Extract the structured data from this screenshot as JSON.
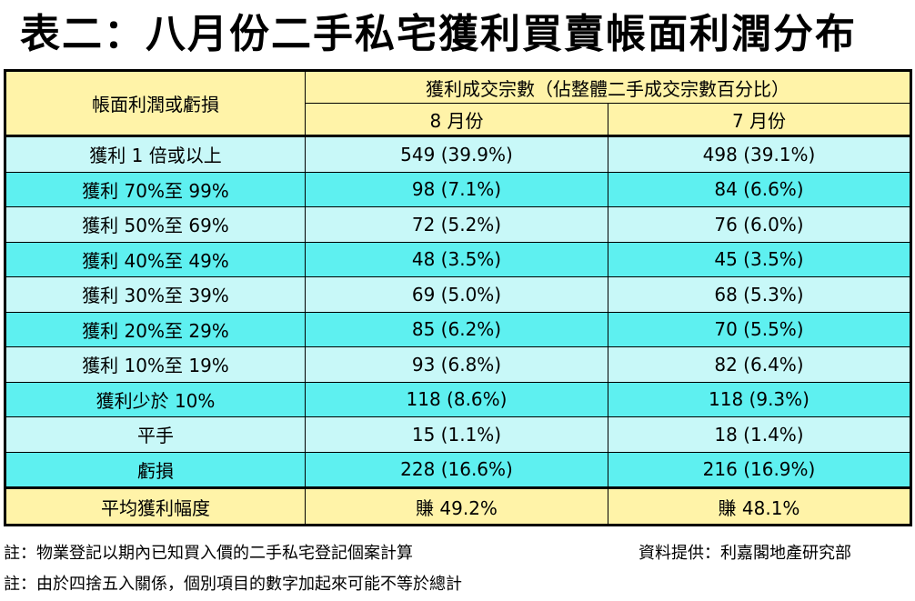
{
  "title": "表二：八月份二手私宅獲利買賣帳面利潤分布",
  "table": {
    "row_header": "帳面利潤或虧損",
    "group_header": "獲利成交宗數（佔整體二手成交宗數百分比）",
    "col_aug": "8 月份",
    "col_jul": "7 月份",
    "rows": [
      {
        "label": "獲利 1 倍或以上",
        "aug": "549 (39.9%)",
        "jul": "498 (39.1%)"
      },
      {
        "label": "獲利 70%至 99%",
        "aug": "98 (7.1%)",
        "jul": "84 (6.6%)"
      },
      {
        "label": "獲利 50%至 69%",
        "aug": "72 (5.2%)",
        "jul": "76 (6.0%)"
      },
      {
        "label": "獲利 40%至 49%",
        "aug": "48 (3.5%)",
        "jul": "45 (3.5%)"
      },
      {
        "label": "獲利 30%至 39%",
        "aug": "69 (5.0%)",
        "jul": "68 (5.3%)"
      },
      {
        "label": "獲利 20%至 29%",
        "aug": "85 (6.2%)",
        "jul": "70 (5.5%)"
      },
      {
        "label": "獲利 10%至 19%",
        "aug": "93 (6.8%)",
        "jul": "82 (6.4%)"
      },
      {
        "label": "獲利少於 10%",
        "aug": "118 (8.6%)",
        "jul": "118 (9.3%)"
      },
      {
        "label": "平手",
        "aug": "15 (1.1%)",
        "jul": "18 (1.4%)"
      },
      {
        "label": "虧損",
        "aug": "228 (16.6%)",
        "jul": "216 (16.9%)"
      }
    ],
    "footer": {
      "label": "平均獲利幅度",
      "aug": "賺 49.2%",
      "jul": "賺 48.1%"
    }
  },
  "notes": {
    "note1": "註：物業登記以期內已知買入價的二手私宅登記個案計算",
    "source": "資料提供：利嘉閣地產研究部",
    "note2": "註：由於四捨五入關係，個別項目的數字加起來可能不等於總計"
  },
  "colors": {
    "header_bg": "#fff3a8",
    "row_light": "#c8f8f8",
    "row_dark": "#5ef0f0"
  },
  "chart_data": {
    "type": "table",
    "title": "表二：八月份二手私宅獲利買賣帳面利潤分布",
    "columns": [
      "帳面利潤或虧損",
      "8 月份",
      "7 月份"
    ],
    "rows": [
      [
        "獲利 1 倍或以上",
        "549 (39.9%)",
        "498 (39.1%)"
      ],
      [
        "獲利 70%至 99%",
        "98 (7.1%)",
        "84 (6.6%)"
      ],
      [
        "獲利 50%至 69%",
        "72 (5.2%)",
        "76 (6.0%)"
      ],
      [
        "獲利 40%至 49%",
        "48 (3.5%)",
        "45 (3.5%)"
      ],
      [
        "獲利 30%至 39%",
        "69 (5.0%)",
        "68 (5.3%)"
      ],
      [
        "獲利 20%至 29%",
        "85 (6.2%)",
        "70 (5.5%)"
      ],
      [
        "獲利 10%至 19%",
        "93 (6.8%)",
        "82 (6.4%)"
      ],
      [
        "獲利少於 10%",
        "118 (8.6%)",
        "118 (9.3%)"
      ],
      [
        "平手",
        "15 (1.1%)",
        "18 (1.4%)"
      ],
      [
        "虧損",
        "228 (16.6%)",
        "216 (16.9%)"
      ],
      [
        "平均獲利幅度",
        "賺 49.2%",
        "賺 48.1%"
      ]
    ]
  }
}
